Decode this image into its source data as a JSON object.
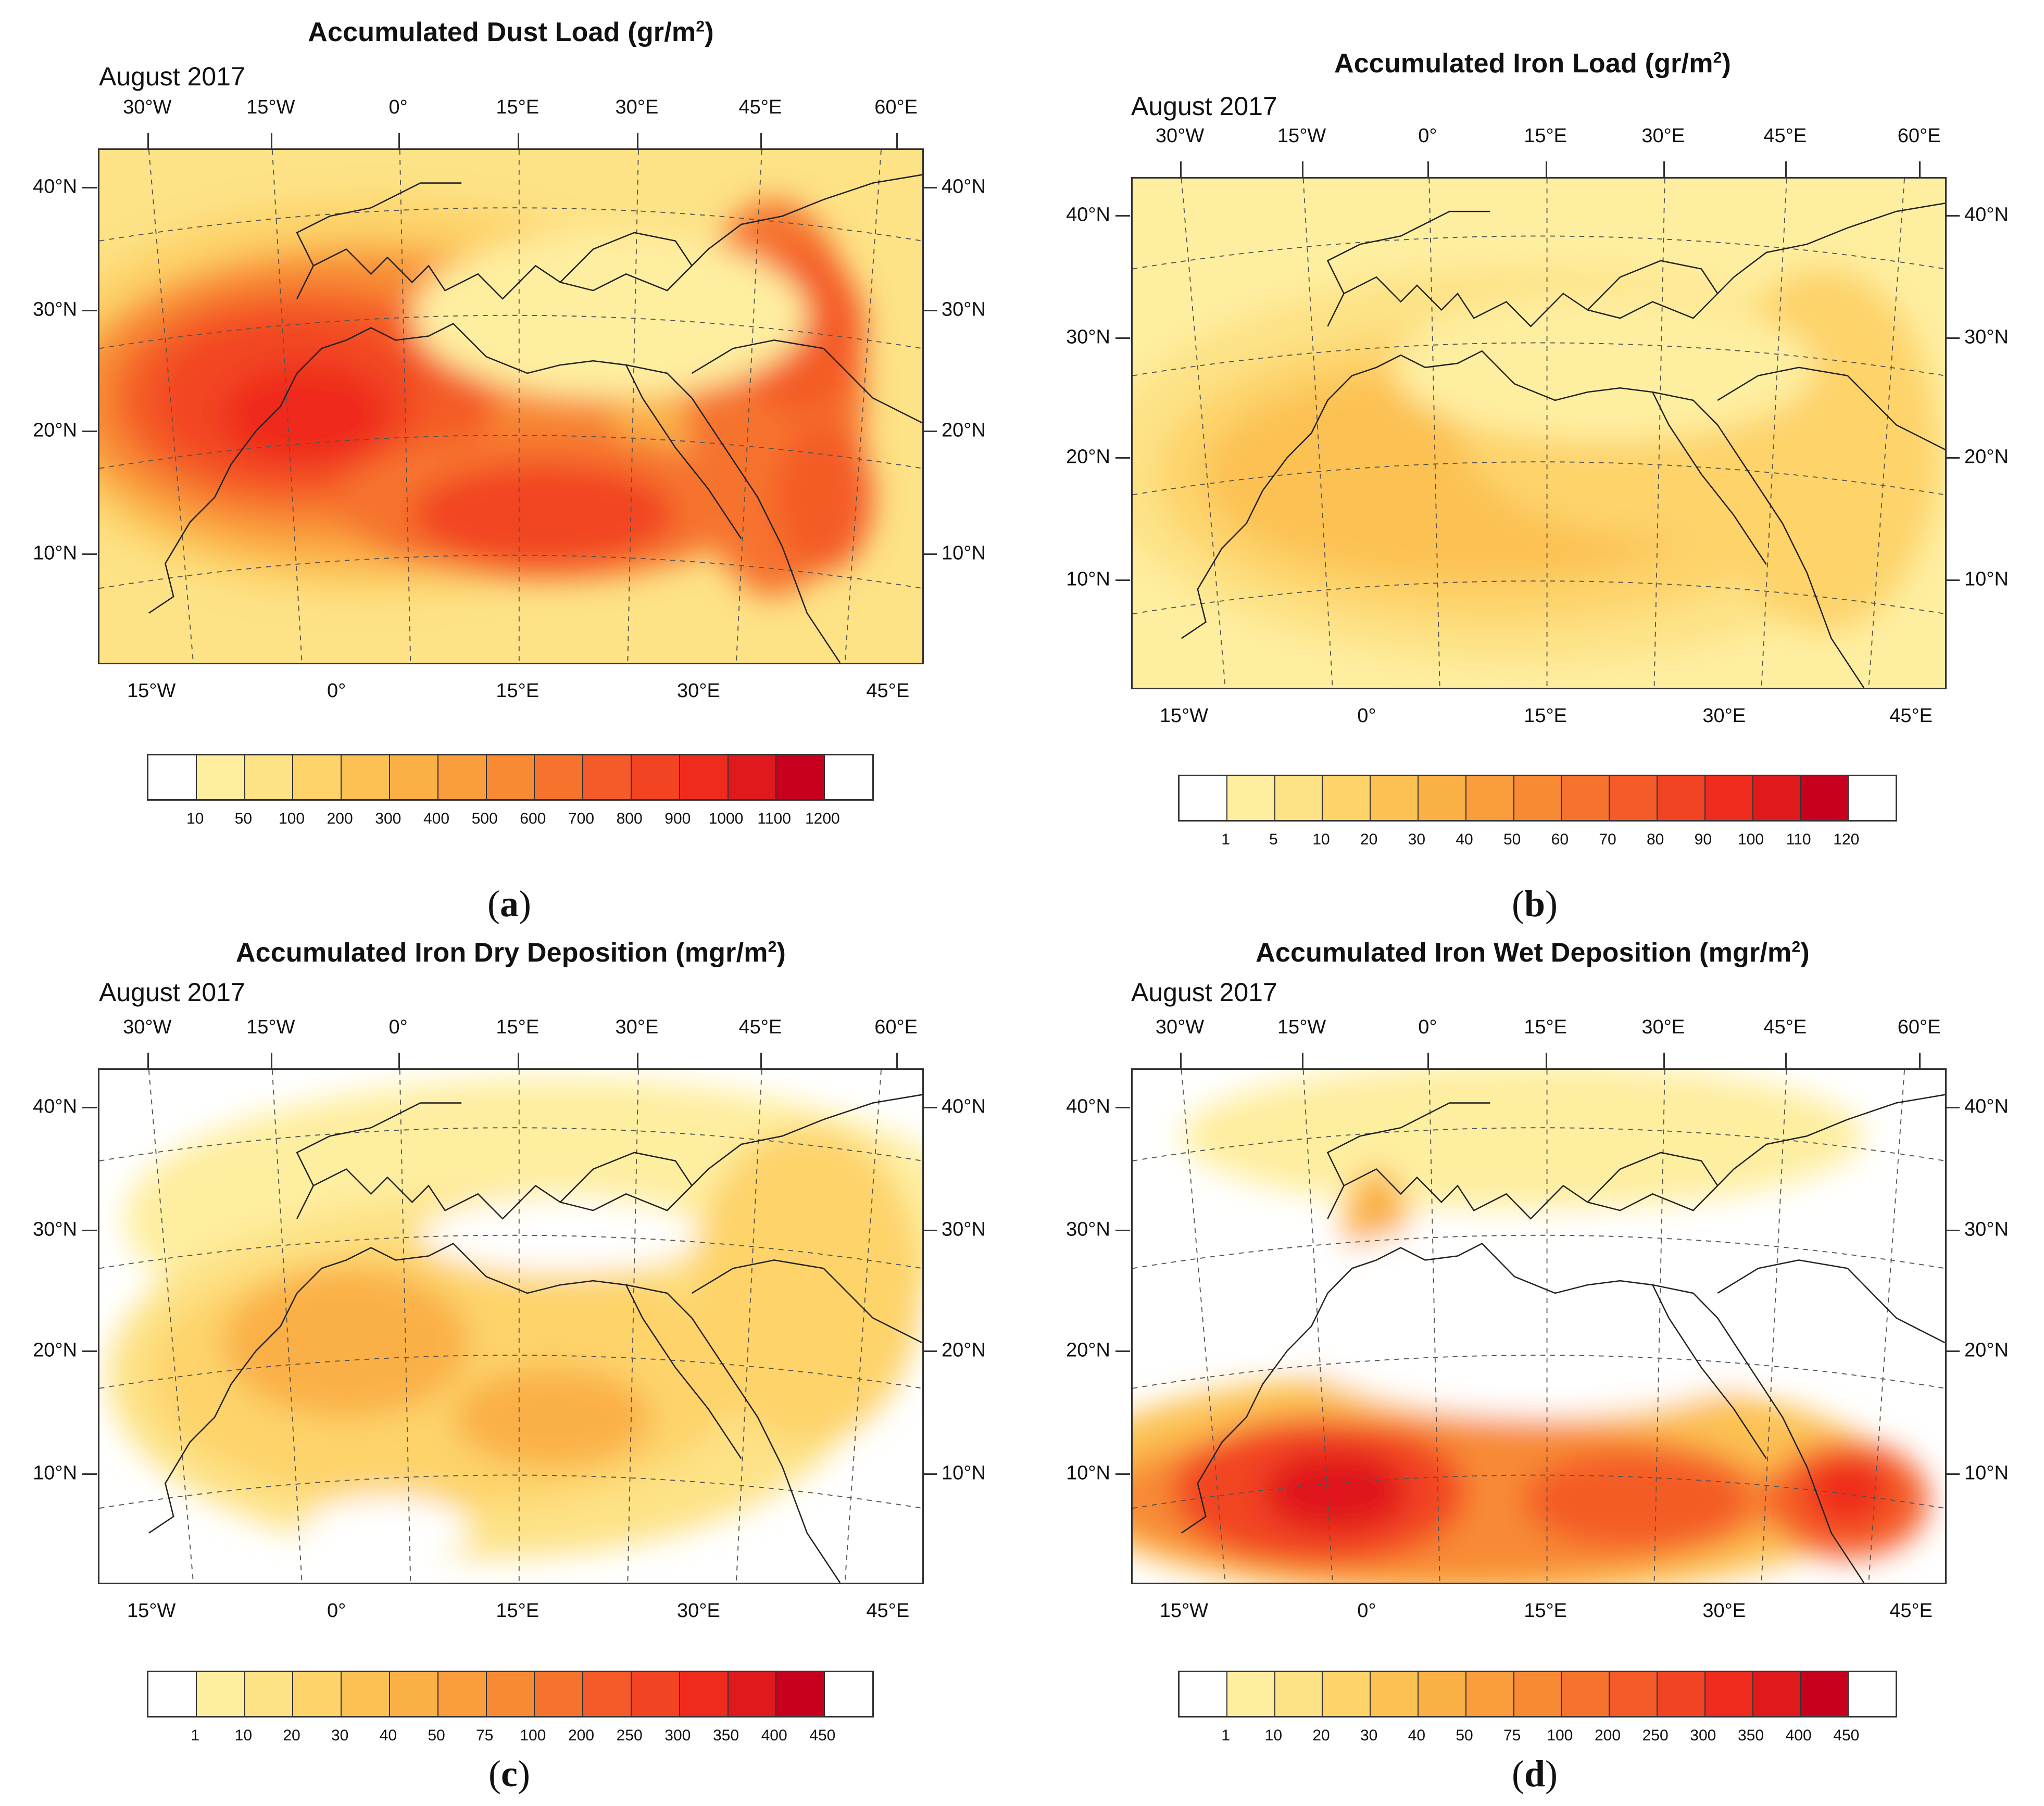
{
  "figure": {
    "subtitle": "August 2017",
    "top_ticks": [
      "30°W",
      "15°W",
      "0°",
      "15°E",
      "30°E",
      "45°E",
      "60°E"
    ],
    "bottom_ticks": [
      "15°W",
      "0°",
      "15°E",
      "30°E",
      "45°E"
    ],
    "lat_ticks": [
      "40°N",
      "30°N",
      "20°N",
      "10°N"
    ],
    "colors": [
      "#ffffff",
      "#feeea0",
      "#fde286",
      "#fdd36a",
      "#fcc153",
      "#fbb046",
      "#fa9d3c",
      "#f88a34",
      "#f6732e",
      "#f45b28",
      "#f24423",
      "#ef2b1e",
      "#e0191c",
      "#c8001e"
    ]
  },
  "panels": [
    {
      "id": "a",
      "title": "Accumulated Dust Load",
      "unit_prefix": "gr/m",
      "unit_sup": "2",
      "label_open": "(",
      "label_letter": "a",
      "label_close": ")",
      "levels": [
        "10",
        "50",
        "100",
        "200",
        "300",
        "400",
        "500",
        "600",
        "700",
        "800",
        "900",
        "1000",
        "1100",
        "1200"
      ]
    },
    {
      "id": "b",
      "title": "Accumulated Iron Load",
      "unit_prefix": "gr/m",
      "unit_sup": "2",
      "label_open": "(",
      "label_letter": "b",
      "label_close": ")",
      "levels": [
        "1",
        "5",
        "10",
        "20",
        "30",
        "40",
        "50",
        "60",
        "70",
        "80",
        "90",
        "100",
        "110",
        "120"
      ]
    },
    {
      "id": "c",
      "title": "Accumulated Iron Dry Deposition",
      "unit_prefix": "mgr/m",
      "unit_sup": "2",
      "label_open": "(",
      "label_letter": "c",
      "label_close": ")",
      "levels": [
        "1",
        "10",
        "20",
        "30",
        "40",
        "50",
        "75",
        "100",
        "200",
        "250",
        "300",
        "350",
        "400",
        "450"
      ]
    },
    {
      "id": "d",
      "title": "Accumulated Iron Wet Deposition",
      "unit_prefix": "mgr/m",
      "unit_sup": "2",
      "label_open": "(",
      "label_letter": "d",
      "label_close": ")",
      "levels": [
        "1",
        "10",
        "20",
        "30",
        "40",
        "50",
        "75",
        "100",
        "200",
        "250",
        "300",
        "350",
        "400",
        "450"
      ]
    }
  ],
  "chart_data": [
    {
      "type": "heatmap",
      "title": "Accumulated Dust Load (gr/m2)",
      "subtitle": "August 2017",
      "colorbar_levels": [
        10,
        50,
        100,
        200,
        300,
        400,
        500,
        600,
        700,
        800,
        900,
        1000,
        1100,
        1200
      ],
      "lon_ticks_top": [
        "30°W",
        "15°W",
        "0°",
        "15°E",
        "30°E",
        "45°E",
        "60°E"
      ],
      "lon_ticks_bottom": [
        "15°W",
        "0°",
        "15°E",
        "30°E",
        "45°E"
      ],
      "lat_ticks": [
        "40°N",
        "30°N",
        "20°N",
        "10°N"
      ]
    },
    {
      "type": "heatmap",
      "title": "Accumulated Iron Load (gr/m2)",
      "subtitle": "August 2017",
      "colorbar_levels": [
        1,
        5,
        10,
        20,
        30,
        40,
        50,
        60,
        70,
        80,
        90,
        100,
        110,
        120
      ],
      "lon_ticks_top": [
        "30°W",
        "15°W",
        "0°",
        "15°E",
        "30°E",
        "45°E",
        "60°E"
      ],
      "lon_ticks_bottom": [
        "15°W",
        "0°",
        "15°E",
        "30°E",
        "45°E"
      ],
      "lat_ticks": [
        "40°N",
        "30°N",
        "20°N",
        "10°N"
      ]
    },
    {
      "type": "heatmap",
      "title": "Accumulated Iron Dry Deposition (mgr/m2)",
      "subtitle": "August 2017",
      "colorbar_levels": [
        1,
        10,
        20,
        30,
        40,
        50,
        75,
        100,
        200,
        250,
        300,
        350,
        400,
        450
      ],
      "lon_ticks_top": [
        "30°W",
        "15°W",
        "0°",
        "15°E",
        "30°E",
        "45°E",
        "60°E"
      ],
      "lon_ticks_bottom": [
        "15°W",
        "0°",
        "15°E",
        "30°E",
        "45°E"
      ],
      "lat_ticks": [
        "40°N",
        "30°N",
        "20°N",
        "10°N"
      ]
    },
    {
      "type": "heatmap",
      "title": "Accumulated Iron Wet Deposition (mgr/m2)",
      "subtitle": "August 2017",
      "colorbar_levels": [
        1,
        10,
        20,
        30,
        40,
        50,
        75,
        100,
        200,
        250,
        300,
        350,
        400,
        450
      ],
      "lon_ticks_top": [
        "30°W",
        "15°W",
        "0°",
        "15°E",
        "30°E",
        "45°E",
        "60°E"
      ],
      "lon_ticks_bottom": [
        "15°W",
        "0°",
        "15°E",
        "30°E",
        "45°E"
      ],
      "lat_ticks": [
        "40°N",
        "30°N",
        "20°N",
        "10°N"
      ]
    }
  ]
}
